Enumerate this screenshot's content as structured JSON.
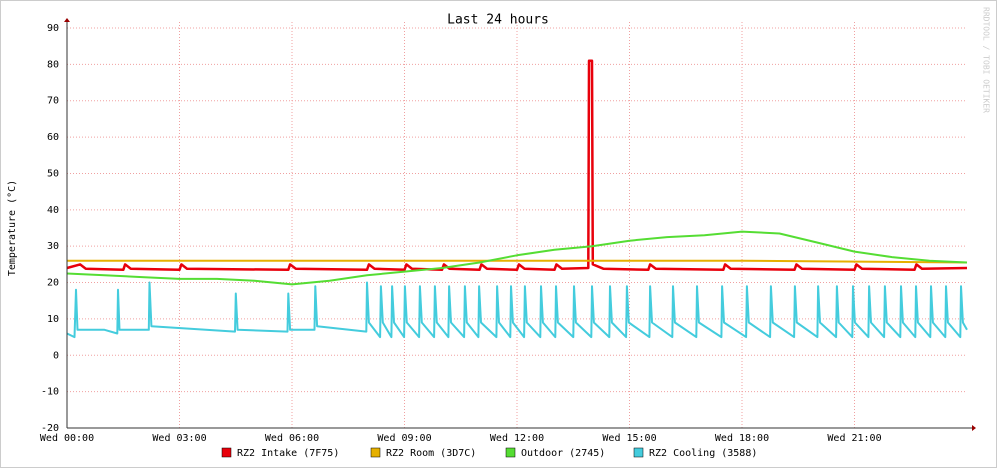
{
  "chart_data": {
    "type": "line",
    "title": "Last 24 hours",
    "y_label": "Temperature (°C)",
    "watermark": "RRDTOOL / TOBI OETIKER",
    "xlim": [
      0,
      24
    ],
    "ylim": [
      -20,
      90
    ],
    "xticks": [
      {
        "value": 0,
        "label": "Wed 00:00"
      },
      {
        "value": 3,
        "label": "Wed 03:00"
      },
      {
        "value": 6,
        "label": "Wed 06:00"
      },
      {
        "value": 9,
        "label": "Wed 09:00"
      },
      {
        "value": 12,
        "label": "Wed 12:00"
      },
      {
        "value": 15,
        "label": "Wed 15:00"
      },
      {
        "value": 18,
        "label": "Wed 18:00"
      },
      {
        "value": 21,
        "label": "Wed 21:00"
      }
    ],
    "yticks": [
      -20,
      -10,
      0,
      10,
      20,
      30,
      40,
      50,
      60,
      70,
      80,
      90
    ],
    "grid": true,
    "series": [
      {
        "name": "RZ2 Intake (7F75)",
        "color": "#e8000b",
        "x": [
          0,
          0.35,
          0.5,
          1.5,
          1.55,
          1.7,
          3.0,
          3.05,
          3.2,
          5.9,
          5.95,
          6.1,
          8.0,
          8.05,
          8.2,
          9.0,
          9.05,
          9.2,
          10.0,
          10.05,
          10.2,
          11.0,
          11.05,
          11.2,
          12.0,
          12.05,
          12.2,
          13.0,
          13.05,
          13.2,
          13.9,
          13.92,
          14.0,
          14.02,
          14.3,
          15.5,
          15.55,
          15.7,
          17.5,
          17.55,
          17.7,
          19.4,
          19.45,
          19.6,
          21.0,
          21.05,
          21.2,
          22.6,
          22.65,
          22.8,
          24
        ],
        "values": [
          24,
          25,
          23.8,
          23.5,
          25,
          23.8,
          23.5,
          25,
          23.8,
          23.5,
          25,
          23.8,
          23.5,
          25,
          23.8,
          23.5,
          25,
          23.8,
          23.5,
          25,
          23.8,
          23.5,
          25,
          23.8,
          23.5,
          25,
          23.8,
          23.5,
          25,
          23.8,
          24,
          81,
          81,
          25,
          23.8,
          23.5,
          25,
          23.8,
          23.5,
          25,
          23.8,
          23.5,
          25,
          23.8,
          23.5,
          25,
          23.8,
          23.5,
          25,
          23.8,
          24
        ]
      },
      {
        "name": "RZ2 Room (3D7C)",
        "color": "#e6b000",
        "x": [
          0,
          6,
          12,
          18,
          24
        ],
        "values": [
          26,
          26,
          26,
          26,
          25.5
        ]
      },
      {
        "name": "Outdoor (2745)",
        "color": "#55dd33",
        "x": [
          0,
          1,
          2,
          3,
          4,
          5,
          6,
          7,
          8,
          9,
          10,
          11,
          12,
          13,
          14,
          15,
          16,
          17,
          18,
          19,
          20,
          21,
          22,
          23,
          24
        ],
        "values": [
          22.5,
          22,
          21.5,
          21,
          21,
          20.5,
          19.5,
          20.5,
          22,
          23,
          24,
          25.5,
          27.5,
          29,
          30,
          31.5,
          32.5,
          33,
          34,
          33.5,
          31,
          28.5,
          27,
          26,
          25.5
        ]
      },
      {
        "name": "RZ2 Cooling (3588)",
        "color": "#44ccdd",
        "x": [
          0,
          0.2,
          0.24,
          0.28,
          1.0,
          1.34,
          1.36,
          1.4,
          2.18,
          2.2,
          2.25,
          4.48,
          4.5,
          4.55,
          5.88,
          5.9,
          5.95,
          6.6,
          6.62,
          6.67,
          7.98,
          8.0,
          8.05,
          8.35,
          8.37,
          8.42,
          8.65,
          8.67,
          8.72,
          8.99,
          9.01,
          9.06,
          9.39,
          9.41,
          9.46,
          9.79,
          9.81,
          9.86,
          10.17,
          10.19,
          10.24,
          10.59,
          10.61,
          10.66,
          10.97,
          10.99,
          11.04,
          11.45,
          11.47,
          11.52,
          11.82,
          11.84,
          11.89,
          12.19,
          12.21,
          12.26,
          12.62,
          12.64,
          12.69,
          13.02,
          13.04,
          13.09,
          13.5,
          13.52,
          13.57,
          13.98,
          14.0,
          14.05,
          14.46,
          14.48,
          14.53,
          14.91,
          14.93,
          14.98,
          15.53,
          15.55,
          15.6,
          16.14,
          16.16,
          16.21,
          16.78,
          16.8,
          16.85,
          17.45,
          17.47,
          17.52,
          18.11,
          18.13,
          18.18,
          18.75,
          18.77,
          18.82,
          19.39,
          19.41,
          19.46,
          20.01,
          20.03,
          20.08,
          20.51,
          20.53,
          20.58,
          20.94,
          20.96,
          21.01,
          21.37,
          21.39,
          21.44,
          21.79,
          21.81,
          21.86,
          22.22,
          22.24,
          22.29,
          22.62,
          22.64,
          22.69,
          23.02,
          23.04,
          23.09,
          23.42,
          23.44,
          23.49,
          23.82,
          23.84,
          23.89,
          24
        ],
        "values": [
          6,
          5,
          18,
          7,
          7,
          6,
          18,
          7,
          7,
          20,
          8,
          6.5,
          17,
          7,
          6.5,
          17,
          7,
          7,
          19,
          8,
          6.5,
          20,
          9,
          5,
          19,
          9,
          5,
          19,
          9,
          5,
          19,
          9,
          5,
          19,
          9,
          5,
          19,
          9,
          5,
          19,
          9,
          5,
          19,
          9,
          5,
          19,
          9,
          5,
          19,
          9,
          5,
          19,
          9,
          5,
          19,
          9,
          5,
          19,
          9,
          5,
          19,
          9,
          5,
          19,
          9,
          5,
          19,
          9,
          5,
          19,
          9,
          5,
          19,
          9,
          5,
          19,
          9,
          5,
          19,
          9,
          5,
          19,
          9,
          5,
          19,
          9,
          5,
          19,
          9,
          5,
          19,
          9,
          5,
          19,
          9,
          5,
          19,
          9,
          5,
          19,
          9,
          5,
          19,
          9,
          5,
          19,
          9,
          5,
          19,
          9,
          5,
          19,
          9,
          5,
          19,
          9,
          5,
          19,
          9,
          5,
          19,
          9,
          5,
          19,
          9,
          7
        ]
      }
    ]
  }
}
